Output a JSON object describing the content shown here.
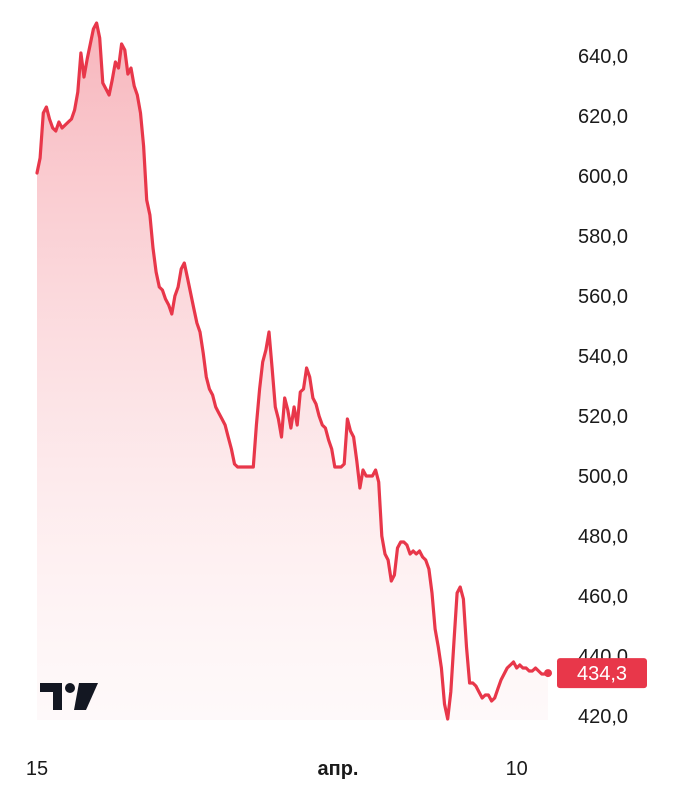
{
  "chart_data": {
    "type": "area",
    "y_ticks": [
      "640,0",
      "620,0",
      "600,0",
      "580,0",
      "560,0",
      "540,0",
      "520,0",
      "500,0",
      "480,0",
      "460,0",
      "440,0",
      "420,0"
    ],
    "x_ticks": [
      {
        "label": "15",
        "index": 0,
        "bold": false
      },
      {
        "label": "апр.",
        "index": 96,
        "bold": true
      },
      {
        "label": "10",
        "index": 153,
        "bold": false
      }
    ],
    "ylim": [
      415,
      653
    ],
    "series": [
      {
        "color": "#e8374a",
        "values": [
          601,
          606,
          621,
          623,
          619,
          616,
          615,
          618,
          616,
          617,
          618,
          619,
          622,
          628,
          641,
          633,
          639,
          644,
          649,
          651,
          646,
          631,
          629,
          627,
          632,
          638,
          636,
          644,
          642,
          634,
          636,
          630,
          627,
          621,
          610,
          592,
          587,
          576,
          568,
          563,
          562,
          559,
          557,
          554,
          560,
          563,
          569,
          571,
          566,
          561,
          556,
          551,
          548,
          541,
          533,
          529,
          527,
          523,
          521,
          519,
          517,
          513,
          509,
          504,
          503,
          503,
          503,
          503,
          503,
          503,
          517,
          529,
          538,
          542,
          548,
          536,
          523,
          519,
          513,
          526,
          522,
          516,
          523,
          517,
          528,
          529,
          536,
          533,
          526,
          524,
          520,
          517,
          516,
          512,
          509,
          503,
          503,
          503,
          504,
          519,
          515,
          513,
          505,
          496,
          502,
          500,
          500,
          500,
          502,
          498,
          480,
          474,
          472,
          465,
          467,
          476,
          478,
          478,
          477,
          474,
          475,
          474,
          475,
          473,
          472,
          469,
          461,
          449,
          443,
          436,
          424,
          419,
          428,
          445,
          461,
          463,
          459,
          443,
          431,
          431,
          430,
          428,
          426,
          427,
          427,
          425,
          426,
          429,
          432,
          434,
          436,
          437,
          438,
          436,
          437,
          436,
          436,
          435,
          435,
          436,
          435,
          434,
          434,
          434
        ]
      }
    ],
    "last_value": 434.3,
    "last_label": "434,3",
    "watermark": "TV"
  }
}
